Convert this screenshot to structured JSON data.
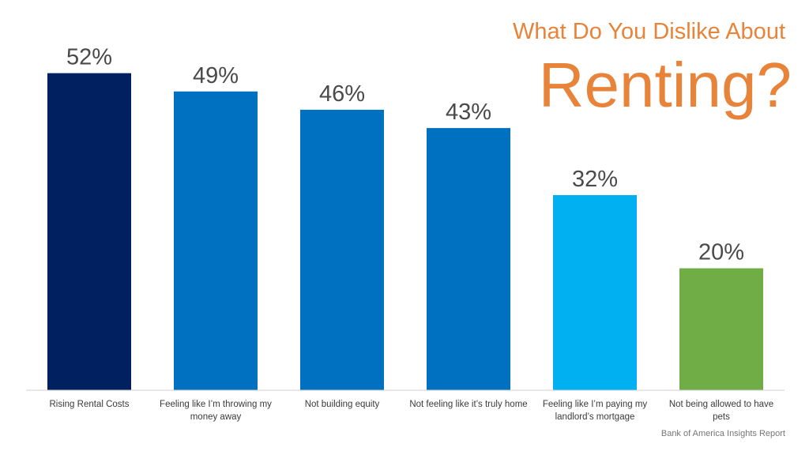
{
  "chart_data": {
    "type": "bar",
    "title": "Renting?",
    "subtitle": "What Do You Dislike About",
    "categories": [
      [
        "Rising Rental Costs"
      ],
      [
        "Feeling like I’m throwing my",
        "money away"
      ],
      [
        "Not building equity"
      ],
      [
        "Not feeling like it’s truly home"
      ],
      [
        "Feeling like I’m paying my",
        "landlord’s mortgage"
      ],
      [
        "Not being allowed to have",
        "pets"
      ]
    ],
    "values": [
      52,
      49,
      46,
      43,
      32,
      20
    ],
    "value_labels": [
      "52%",
      "49%",
      "46%",
      "43%",
      "32%",
      "20%"
    ],
    "colors": [
      "#002060",
      "#0070c0",
      "#0070c0",
      "#0070c0",
      "#00b0f0",
      "#70ad47"
    ],
    "ylim": [
      0,
      64
    ],
    "grid": false,
    "legend": "none"
  },
  "source": "Bank of America Insights Report"
}
